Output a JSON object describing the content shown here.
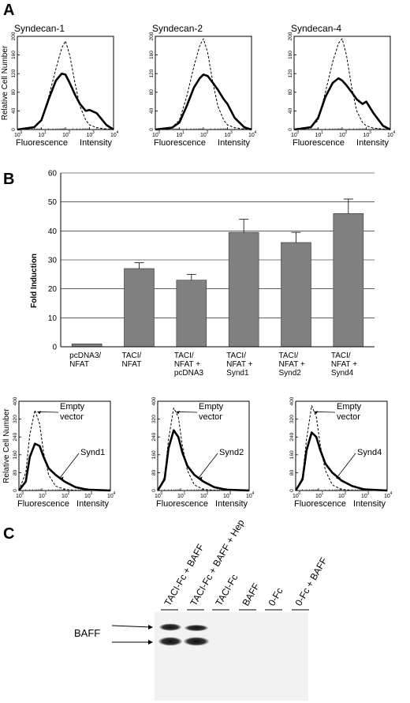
{
  "panels": {
    "A": {
      "label": "A",
      "hist_titles": [
        "Syndecan-1",
        "Syndecan-2",
        "Syndecan-4"
      ],
      "y_axis_label": "Relative Cell Number",
      "y_ticks": [
        "0",
        "40",
        "80",
        "120",
        "160",
        "200"
      ],
      "x_axis_label": [
        "Fluorescence",
        "Intensity"
      ],
      "x_ticks": [
        "10",
        "10",
        "10",
        "10",
        "10"
      ],
      "x_tick_exponents": [
        "0",
        "1",
        "2",
        "3",
        "4"
      ]
    },
    "B": {
      "label": "B",
      "hist_y_ticks": [
        "0",
        "80",
        "160",
        "240",
        "320",
        "400"
      ],
      "hist_y_axis_label": "Relative Cell Number",
      "hist_x_axis_label": [
        "Fluorescence",
        "Intensity"
      ],
      "empty_vector_label": [
        "Empty",
        "vector"
      ],
      "synd_labels": [
        "Synd1",
        "Synd2",
        "Synd4"
      ]
    },
    "C": {
      "label": "C",
      "lanes": [
        "TACI-Fc + BAFF",
        "TACI-Fc + BAFF + Hep",
        "TACI-Fc",
        "BAFF",
        "0-Fc",
        "0-Fc + BAFF"
      ],
      "band_label": "BAFF"
    }
  },
  "chart_data": [
    {
      "type": "line",
      "title": "Syndecan-1",
      "xlabel": "Fluorescence Intensity",
      "ylabel": "Relative Cell Number",
      "xscale": "log",
      "xlim": [
        1,
        10000
      ],
      "ylim": [
        0,
        200
      ],
      "series": [
        {
          "name": "",
          "style": "dashed",
          "x": [
            1,
            5,
            10,
            20,
            40,
            70,
            100,
            150,
            250,
            400,
            700,
            1000,
            2000,
            5000,
            10000
          ],
          "y": [
            0,
            5,
            20,
            70,
            130,
            175,
            190,
            160,
            100,
            50,
            20,
            10,
            4,
            1,
            0
          ]
        },
        {
          "name": "",
          "style": "solid",
          "x": [
            1,
            5,
            10,
            20,
            40,
            70,
            100,
            150,
            250,
            400,
            700,
            1000,
            2000,
            5000,
            10000
          ],
          "y": [
            0,
            5,
            20,
            65,
            105,
            120,
            118,
            100,
            75,
            55,
            40,
            42,
            35,
            10,
            0
          ]
        }
      ]
    },
    {
      "type": "line",
      "title": "Syndecan-2",
      "xlabel": "Fluorescence Intensity",
      "ylabel": "",
      "xscale": "log",
      "xlim": [
        1,
        10000
      ],
      "ylim": [
        0,
        200
      ],
      "series": [
        {
          "name": "",
          "style": "dashed",
          "x": [
            1,
            5,
            10,
            20,
            40,
            70,
            100,
            150,
            250,
            400,
            700,
            1000,
            2000,
            5000,
            10000
          ],
          "y": [
            0,
            5,
            20,
            70,
            135,
            180,
            195,
            165,
            100,
            50,
            20,
            10,
            4,
            1,
            0
          ]
        },
        {
          "name": "",
          "style": "solid",
          "x": [
            1,
            5,
            10,
            20,
            40,
            70,
            100,
            150,
            250,
            400,
            700,
            1000,
            2000,
            5000,
            10000
          ],
          "y": [
            0,
            4,
            15,
            50,
            90,
            110,
            118,
            115,
            100,
            85,
            65,
            55,
            25,
            5,
            0
          ]
        }
      ]
    },
    {
      "type": "line",
      "title": "Syndecan-4",
      "xlabel": "Fluorescence Intensity",
      "ylabel": "",
      "xscale": "log",
      "xlim": [
        1,
        10000
      ],
      "ylim": [
        0,
        200
      ],
      "series": [
        {
          "name": "",
          "style": "dashed",
          "x": [
            1,
            5,
            10,
            20,
            40,
            70,
            100,
            150,
            250,
            400,
            700,
            1000,
            2000,
            5000,
            10000
          ],
          "y": [
            0,
            5,
            20,
            80,
            145,
            185,
            195,
            160,
            90,
            40,
            15,
            8,
            3,
            1,
            0
          ]
        },
        {
          "name": "",
          "style": "solid",
          "x": [
            1,
            5,
            10,
            20,
            40,
            70,
            100,
            150,
            250,
            400,
            700,
            1000,
            2000,
            5000,
            10000
          ],
          "y": [
            0,
            5,
            25,
            70,
            100,
            110,
            105,
            95,
            80,
            65,
            55,
            60,
            35,
            8,
            0
          ]
        }
      ]
    },
    {
      "type": "bar",
      "title": "",
      "ylabel": "Fold Induction",
      "xlabel": "",
      "ylim": [
        0,
        60
      ],
      "yticks": [
        0,
        10,
        20,
        30,
        40,
        50,
        60
      ],
      "grid": true,
      "categories": [
        [
          "pcDNA3/",
          "NFAT"
        ],
        [
          "TACI/",
          "NFAT"
        ],
        [
          "TACI/",
          "NFAT +",
          "pcDNA3"
        ],
        [
          "TACI/",
          "NFAT +",
          "Synd1"
        ],
        [
          "TACI/",
          "NFAT +",
          "Synd2"
        ],
        [
          "TACI/",
          "NFAT +",
          "Synd4"
        ]
      ],
      "values": [
        1,
        27,
        23,
        39.5,
        36,
        46
      ],
      "errors": [
        0,
        2,
        2,
        4.5,
        3.5,
        5
      ]
    },
    {
      "type": "line",
      "title": "",
      "xlabel": "Fluorescence Intensity",
      "ylabel": "Relative Cell Number",
      "xscale": "log",
      "xlim": [
        1,
        10000
      ],
      "ylim": [
        0,
        400
      ],
      "series": [
        {
          "name": "Empty vector",
          "style": "dashed",
          "x": [
            1,
            2,
            3,
            5,
            8,
            12,
            20,
            40,
            100,
            300,
            1000,
            10000
          ],
          "y": [
            0,
            80,
            250,
            360,
            300,
            170,
            70,
            20,
            5,
            1,
            0,
            0
          ]
        },
        {
          "name": "Synd1",
          "style": "solid",
          "x": [
            1,
            2,
            3,
            5,
            8,
            12,
            20,
            40,
            100,
            300,
            1000,
            10000
          ],
          "y": [
            0,
            40,
            150,
            210,
            200,
            150,
            100,
            70,
            40,
            15,
            4,
            0
          ]
        }
      ]
    },
    {
      "type": "line",
      "title": "",
      "xlabel": "Fluorescence Intensity",
      "ylabel": "",
      "xscale": "log",
      "xlim": [
        1,
        10000
      ],
      "ylim": [
        0,
        400
      ],
      "series": [
        {
          "name": "Empty vector",
          "style": "dashed",
          "x": [
            1,
            2,
            3,
            5,
            8,
            12,
            20,
            40,
            100,
            300,
            1000,
            10000
          ],
          "y": [
            0,
            60,
            230,
            370,
            330,
            200,
            90,
            25,
            5,
            1,
            0,
            0
          ]
        },
        {
          "name": "Synd2",
          "style": "solid",
          "x": [
            1,
            2,
            3,
            5,
            8,
            12,
            20,
            40,
            100,
            300,
            1000,
            10000
          ],
          "y": [
            0,
            50,
            190,
            270,
            240,
            170,
            110,
            70,
            40,
            15,
            4,
            0
          ]
        }
      ]
    },
    {
      "type": "line",
      "title": "",
      "xlabel": "Fluorescence Intensity",
      "ylabel": "",
      "xscale": "log",
      "xlim": [
        1,
        10000
      ],
      "ylim": [
        0,
        400
      ],
      "series": [
        {
          "name": "Empty vector",
          "style": "dashed",
          "x": [
            1,
            2,
            3,
            5,
            8,
            12,
            20,
            40,
            100,
            300,
            1000,
            10000
          ],
          "y": [
            0,
            60,
            230,
            380,
            330,
            200,
            90,
            25,
            5,
            1,
            0,
            0
          ]
        },
        {
          "name": "Synd4",
          "style": "solid",
          "x": [
            1,
            2,
            3,
            5,
            8,
            12,
            20,
            40,
            100,
            300,
            1000,
            10000
          ],
          "y": [
            0,
            50,
            180,
            260,
            240,
            180,
            120,
            80,
            45,
            20,
            5,
            0
          ]
        }
      ]
    }
  ]
}
